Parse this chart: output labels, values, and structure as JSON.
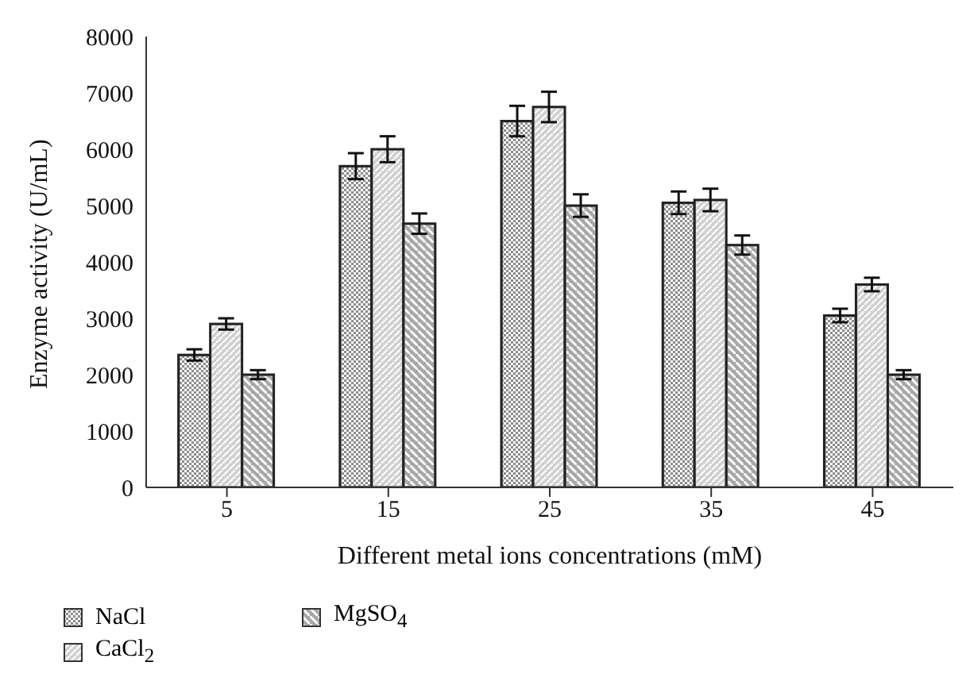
{
  "chart_data": {
    "type": "bar",
    "xlabel": "Different metal ions concentrations (mM)",
    "ylabel": "Enzyme activity (U/mL)",
    "categories": [
      "5",
      "15",
      "25",
      "35",
      "45"
    ],
    "series": [
      {
        "name": "NaCl",
        "color": "#8c8c8c",
        "values": [
          2350,
          5700,
          6500,
          5050,
          3050
        ],
        "errors": [
          100,
          230,
          270,
          200,
          120
        ]
      },
      {
        "name": "CaCl$_{2}$",
        "color": "#d0d0d0",
        "values": [
          2900,
          6000,
          6750,
          5100,
          3600
        ],
        "errors": [
          100,
          230,
          270,
          200,
          120
        ]
      },
      {
        "name": "MgSO$_{4}$",
        "color": "#a8a8a8",
        "values": [
          2000,
          4680,
          5000,
          4300,
          2000
        ],
        "errors": [
          80,
          180,
          200,
          170,
          80
        ]
      }
    ],
    "ylim": [
      0,
      8000
    ],
    "yticks": [
      0,
      1000,
      2000,
      3000,
      4000,
      5000,
      6000,
      7000,
      8000
    ],
    "grid": false,
    "legend": "bottom left"
  }
}
